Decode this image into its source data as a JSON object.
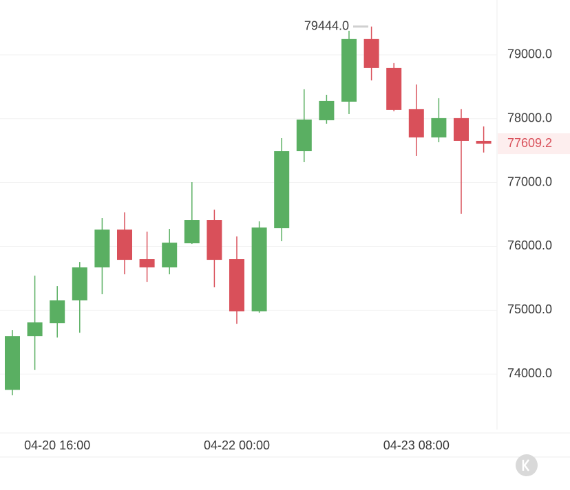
{
  "chart_data": {
    "type": "candlestick",
    "categories": [
      null,
      null,
      "04-20 16:00",
      null,
      null,
      null,
      null,
      null,
      null,
      null,
      "04-22 00:00",
      null,
      null,
      null,
      null,
      null,
      null,
      null,
      "04-23 08:00",
      null,
      null,
      null
    ],
    "open": [
      73752,
      74593,
      74797,
      75153,
      75670,
      76263,
      75800,
      75670,
      76048,
      76414,
      75800,
      74981,
      76284,
      77491,
      77976,
      78267,
      79248,
      78795,
      78149,
      77707,
      78009,
      77653
    ],
    "high": [
      74690,
      75541,
      75379,
      75756,
      76446,
      76532,
      76231,
      76274,
      77006,
      76575,
      76155,
      76392,
      77696,
      78461,
      78375,
      79377,
      79444,
      78871,
      78537,
      78321,
      78149,
      77879
    ],
    "low": [
      73666,
      74065,
      74571,
      74647,
      75250,
      75562,
      75444,
      75562,
      76037,
      75358,
      74787,
      74959,
      76080,
      77319,
      77922,
      78073,
      78600,
      78116,
      77416,
      77631,
      76511,
      77470
    ],
    "close": [
      74593,
      74808,
      75153,
      75670,
      76263,
      75789,
      75670,
      76058,
      76414,
      75789,
      74981,
      76295,
      77491,
      77987,
      78278,
      79248,
      78795,
      78138,
      77707,
      78009,
      77653,
      77609.2
    ],
    "up_color": "#5aaf62",
    "down_color": "#d9505a",
    "ylim": [
      73130,
      79860
    ],
    "yticks": [
      {
        "value": 74000,
        "label": "74000.0"
      },
      {
        "value": 75000,
        "label": "75000.0"
      },
      {
        "value": 76000,
        "label": "76000.0"
      },
      {
        "value": 77000,
        "label": "77000.0"
      },
      {
        "value": 78000,
        "label": "78000.0"
      },
      {
        "value": 79000,
        "label": "79000.0"
      }
    ],
    "grid": true,
    "max_annotation": {
      "value": 79444,
      "label": "79444.0"
    },
    "last_price": 77609.2
  }
}
